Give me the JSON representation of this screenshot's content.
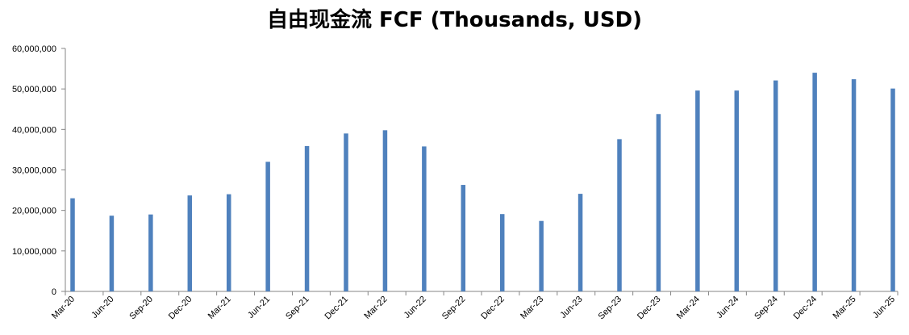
{
  "chart_data": {
    "type": "bar",
    "title": "自由现金流 FCF (Thousands, USD)",
    "xlabel": "",
    "ylabel": "",
    "ylim": [
      0,
      60000000
    ],
    "ytick_values": [
      0,
      10000000,
      20000000,
      30000000,
      40000000,
      50000000,
      60000000
    ],
    "ytick_labels": [
      "0",
      "10,000,000",
      "20,000,000",
      "30,000,000",
      "40,000,000",
      "50,000,000",
      "60,000,000"
    ],
    "categories": [
      "Mar-20",
      "Jun-20",
      "Sep-20",
      "Dec-20",
      "Mar-21",
      "Jun-21",
      "Sep-21",
      "Dec-21",
      "Mar-22",
      "Jun-22",
      "Sep-22",
      "Dec-22",
      "Mar-23",
      "Jun-23",
      "Sep-23",
      "Dec-23",
      "Mar-24",
      "Jun-24",
      "Sep-24",
      "Dec-24",
      "Mar-25",
      "Jun-25"
    ],
    "values": [
      23000000,
      18700000,
      19000000,
      23700000,
      24000000,
      32000000,
      35900000,
      39000000,
      39800000,
      35800000,
      26300000,
      19100000,
      17400000,
      24100000,
      37600000,
      43800000,
      49600000,
      49600000,
      52100000,
      54000000,
      52400000,
      50100000
    ],
    "bar_color": "#4f81bd",
    "grid": false,
    "legend": "none"
  }
}
